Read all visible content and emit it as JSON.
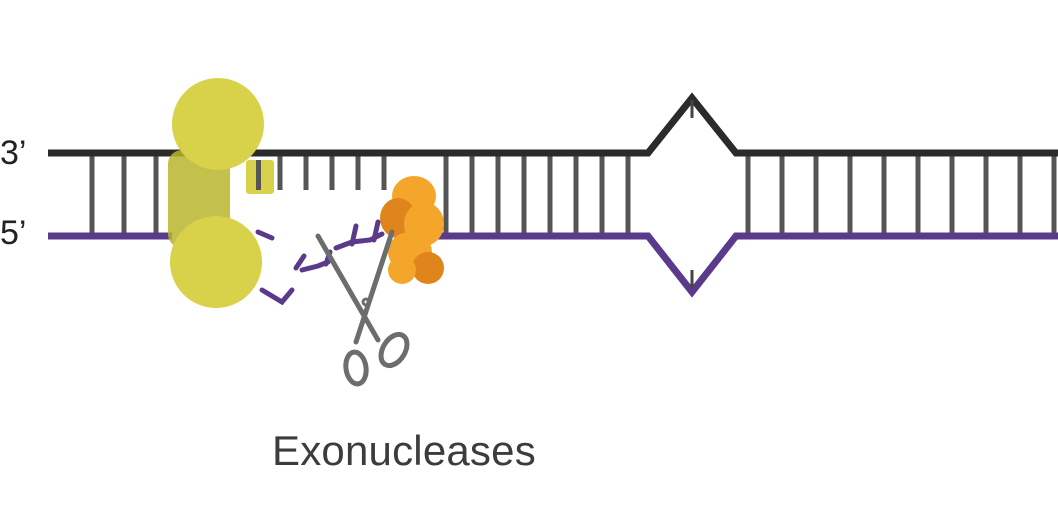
{
  "labels": {
    "top_strand_end": "3’",
    "bottom_strand_end": "5’",
    "caption": "Exonucleases"
  },
  "colors": {
    "template_strand": "#2b2b2b",
    "new_strand": "#5b3a8c",
    "rung": "#555555",
    "polymerase": "#d8d24a",
    "polymerase_dark": "#b9b52c",
    "exonuclease": "#f4a62a",
    "exonuclease_dark": "#e0851b",
    "scissors": "#6d6d6d",
    "background": "#ffffff"
  },
  "icons": {
    "cutter": "scissors-icon",
    "polymerase": "dna-polymerase-shape",
    "exonuclease": "exonuclease-enzyme-shape"
  }
}
